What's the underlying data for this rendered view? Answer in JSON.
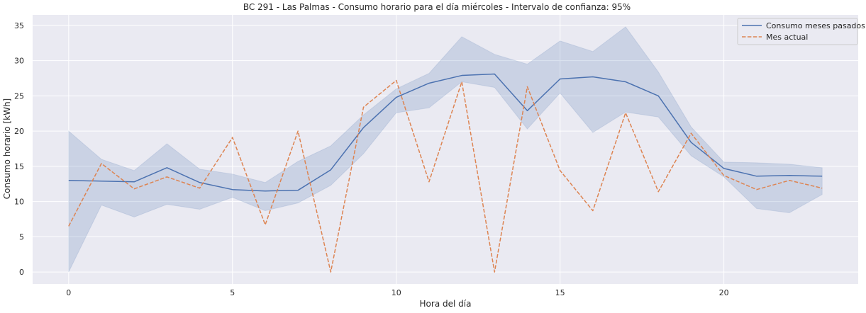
{
  "chart_data": {
    "type": "line",
    "title": "BC 291 - Las Palmas - Consumo horario para el día miércoles - Intervalo de confianza: 95%",
    "xlabel": "Hora del día",
    "ylabel": "Consumo horario [kWh]",
    "xlim": [
      -1.1,
      24.1
    ],
    "ylim": [
      -1.7,
      36.5
    ],
    "xticks": [
      0,
      5,
      10,
      15,
      20
    ],
    "yticks": [
      0,
      5,
      10,
      15,
      20,
      25,
      30,
      35
    ],
    "grid": true,
    "legend_position": "top-right",
    "x": [
      0,
      1,
      2,
      3,
      4,
      5,
      6,
      7,
      8,
      9,
      10,
      11,
      12,
      13,
      14,
      15,
      16,
      17,
      18,
      19,
      20,
      21,
      22,
      23
    ],
    "series": [
      {
        "name": "Consumo meses pasados",
        "color": "#4c72b0",
        "style": "solid",
        "values": [
          13.0,
          12.9,
          12.8,
          14.8,
          12.7,
          11.7,
          11.5,
          11.6,
          14.5,
          20.5,
          24.8,
          26.8,
          27.9,
          28.1,
          22.9,
          27.4,
          27.7,
          27.0,
          25.0,
          18.4,
          14.7,
          13.6,
          13.7,
          13.6
        ],
        "ci_lower": [
          0.0,
          9.5,
          7.8,
          9.6,
          8.9,
          10.6,
          8.7,
          9.8,
          12.3,
          16.8,
          22.6,
          23.3,
          27.0,
          26.2,
          20.3,
          25.4,
          19.8,
          22.7,
          22.0,
          16.5,
          13.5,
          9.0,
          8.4,
          11.0
        ],
        "ci_upper": [
          20.0,
          16.0,
          14.4,
          18.2,
          14.6,
          13.9,
          12.7,
          15.7,
          17.9,
          22.3,
          26.0,
          28.2,
          33.4,
          30.9,
          29.5,
          32.8,
          31.3,
          34.8,
          28.4,
          20.6,
          15.6,
          15.5,
          15.3,
          14.8
        ]
      },
      {
        "name": "Mes actual",
        "color": "#dd8452",
        "style": "dashed",
        "values": [
          6.5,
          15.4,
          11.8,
          13.5,
          11.9,
          19.1,
          6.7,
          20.0,
          0.0,
          23.4,
          27.2,
          12.8,
          27.0,
          0.0,
          26.3,
          14.4,
          8.7,
          22.6,
          11.4,
          19.7,
          13.7,
          11.7,
          13.0,
          11.9
        ]
      }
    ]
  }
}
